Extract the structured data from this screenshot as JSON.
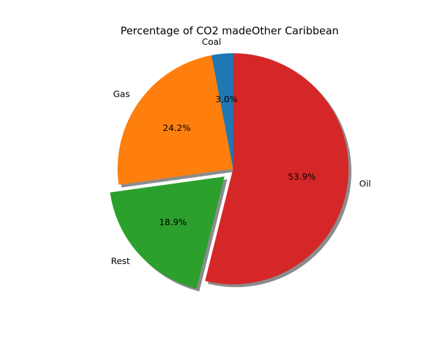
{
  "chart_data": {
    "type": "pie",
    "title": "Percentage of CO2 madeOther Caribbean",
    "slices": [
      {
        "label": "Coal",
        "value": 3.0,
        "pct_text": "3.0%",
        "color": "#1f77b4",
        "exploded": false
      },
      {
        "label": "Gas",
        "value": 24.2,
        "pct_text": "24.2%",
        "color": "#ff7f0e",
        "exploded": false
      },
      {
        "label": "Rest",
        "value": 18.9,
        "pct_text": "18.9%",
        "color": "#2ca02c",
        "exploded": true
      },
      {
        "label": "Oil",
        "value": 53.9,
        "pct_text": "53.9%",
        "color": "#d62728",
        "exploded": false
      }
    ],
    "start_angle_deg": 90,
    "direction": "counterclockwise",
    "shadow": true,
    "legend": "none"
  }
}
